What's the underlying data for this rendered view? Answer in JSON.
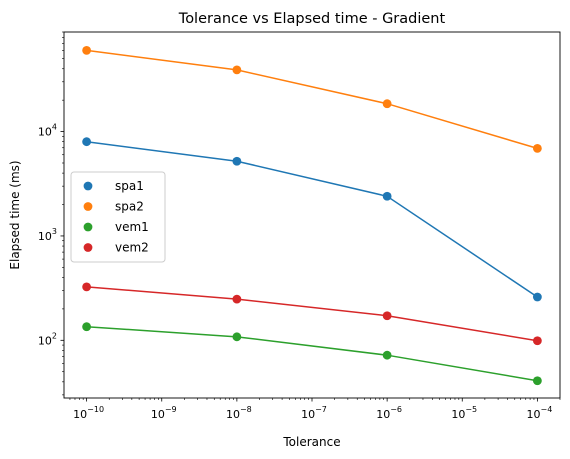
{
  "chart_data": {
    "type": "scatter",
    "title": "Tolerance vs Elapsed time - Gradient",
    "xlabel": "Tolerance",
    "ylabel": "Elapsed time (ms)",
    "xscale": "log",
    "yscale": "log",
    "xlim": [
      5e-11,
      0.0002
    ],
    "ylim": [
      28,
      90000
    ],
    "x": [
      1e-10,
      1e-08,
      1e-06,
      0.0001
    ],
    "x_tick_labels": [
      {
        "value": 1e-10,
        "base": "10",
        "exp": "−10"
      },
      {
        "value": 1e-09,
        "base": "10",
        "exp": "−9"
      },
      {
        "value": 1e-08,
        "base": "10",
        "exp": "−8"
      },
      {
        "value": 1e-07,
        "base": "10",
        "exp": "−7"
      },
      {
        "value": 1e-06,
        "base": "10",
        "exp": "−6"
      },
      {
        "value": 1e-05,
        "base": "10",
        "exp": "−5"
      },
      {
        "value": 0.0001,
        "base": "10",
        "exp": "−4"
      }
    ],
    "y_tick_labels": [
      {
        "value": 100,
        "base": "10",
        "exp": "2"
      },
      {
        "value": 1000,
        "base": "10",
        "exp": "3"
      },
      {
        "value": 10000,
        "base": "10",
        "exp": "4"
      }
    ],
    "grid": false,
    "legend_position": "center-left",
    "series": [
      {
        "name": "spa1",
        "color": "#1f77b4",
        "values": [
          8000,
          5200,
          2400,
          260
        ]
      },
      {
        "name": "spa2",
        "color": "#ff7f0e",
        "values": [
          60000,
          39000,
          18500,
          6900
        ]
      },
      {
        "name": "vem1",
        "color": "#2ca02c",
        "values": [
          135,
          108,
          72,
          41
        ]
      },
      {
        "name": "vem2",
        "color": "#d62728",
        "values": [
          325,
          248,
          172,
          99
        ]
      }
    ]
  }
}
